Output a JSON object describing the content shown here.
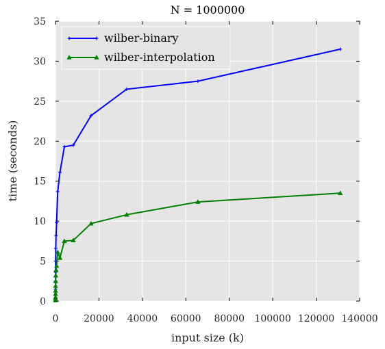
{
  "chart_data": {
    "type": "line",
    "title": "N = 1000000",
    "xlabel": "input size (k)",
    "ylabel": "time (seconds)",
    "xlim": [
      0,
      140000
    ],
    "ylim": [
      0,
      35
    ],
    "xticks": [
      0,
      20000,
      40000,
      60000,
      80000,
      100000,
      120000,
      140000
    ],
    "xtick_labels": [
      "0",
      "20000",
      "40000",
      "60000",
      "80000",
      "100000",
      "120000",
      "140000"
    ],
    "yticks": [
      0,
      5,
      10,
      15,
      20,
      25,
      30,
      35
    ],
    "ytick_labels": [
      "0",
      "5",
      "10",
      "15",
      "20",
      "25",
      "30",
      "35"
    ],
    "grid": true,
    "legend_position": "top-left",
    "series": [
      {
        "name": "wilber-binary",
        "color": "#0000ff",
        "marker": "plus",
        "x": [
          1,
          2,
          4,
          8,
          16,
          32,
          64,
          128,
          256,
          512,
          1024,
          2048,
          4096,
          8192,
          16384,
          32768,
          65536,
          131072
        ],
        "y": [
          0.2,
          0.4,
          0.8,
          1.5,
          2.5,
          3.6,
          5.0,
          6.6,
          8.2,
          9.8,
          13.7,
          16.1,
          19.3,
          19.5,
          23.2,
          26.5,
          27.5,
          31.5
        ]
      },
      {
        "name": "wilber-interpolation",
        "color": "#008000",
        "marker": "triangle",
        "x": [
          1,
          2,
          4,
          8,
          16,
          32,
          64,
          128,
          256,
          512,
          1024,
          2048,
          4096,
          8192,
          16384,
          32768,
          65536,
          131072
        ],
        "y": [
          0.1,
          0.3,
          0.5,
          0.9,
          1.3,
          1.9,
          2.5,
          3.2,
          3.9,
          4.4,
          6.1,
          5.4,
          7.5,
          7.6,
          9.7,
          10.8,
          12.4,
          13.5
        ]
      }
    ]
  }
}
